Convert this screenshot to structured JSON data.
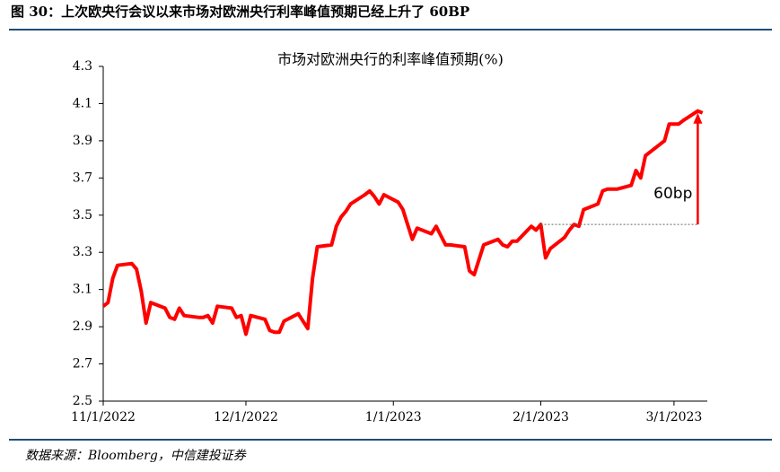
{
  "header": {
    "title": "图 30：上次欧央行会议以来市场对欧洲央行利率峰值预期已经上升了 60BP"
  },
  "chart_data": {
    "type": "line",
    "title": "市场对欧洲央行的利率峰值预期(%)",
    "x": [
      "11/1/2022",
      "11/2/2022",
      "11/3/2022",
      "11/4/2022",
      "11/7/2022",
      "11/8/2022",
      "11/9/2022",
      "11/10/2022",
      "11/11/2022",
      "11/14/2022",
      "11/15/2022",
      "11/16/2022",
      "11/17/2022",
      "11/18/2022",
      "11/21/2022",
      "11/22/2022",
      "11/23/2022",
      "11/24/2022",
      "11/25/2022",
      "11/28/2022",
      "11/29/2022",
      "11/30/2022",
      "12/1/2022",
      "12/2/2022",
      "12/5/2022",
      "12/6/2022",
      "12/7/2022",
      "12/8/2022",
      "12/9/2022",
      "12/12/2022",
      "12/13/2022",
      "12/14/2022",
      "12/15/2022",
      "12/16/2022",
      "12/19/2022",
      "12/20/2022",
      "12/21/2022",
      "12/22/2022",
      "12/23/2022",
      "12/26/2022",
      "12/27/2022",
      "12/28/2022",
      "12/29/2022",
      "12/30/2022",
      "1/2/2023",
      "1/3/2023",
      "1/4/2023",
      "1/5/2023",
      "1/6/2023",
      "1/9/2023",
      "1/10/2023",
      "1/11/2023",
      "1/12/2023",
      "1/13/2023",
      "1/16/2023",
      "1/17/2023",
      "1/18/2023",
      "1/19/2023",
      "1/20/2023",
      "1/23/2023",
      "1/24/2023",
      "1/25/2023",
      "1/26/2023",
      "1/27/2023",
      "1/30/2023",
      "1/31/2023",
      "2/1/2023",
      "2/2/2023",
      "2/3/2023",
      "2/6/2023",
      "2/7/2023",
      "2/8/2023",
      "2/9/2023",
      "2/10/2023",
      "2/13/2023",
      "2/14/2023",
      "2/15/2023",
      "2/16/2023",
      "2/17/2023",
      "2/20/2023",
      "2/21/2023",
      "2/22/2023",
      "2/23/2023",
      "2/24/2023",
      "2/27/2023",
      "2/28/2023",
      "3/1/2023",
      "3/2/2023",
      "3/3/2023",
      "3/6/2023",
      "3/7/2023"
    ],
    "series": [
      {
        "name": "市场对欧洲央行的利率峰值预期",
        "color": "#ff0000",
        "values": [
          3.01,
          3.03,
          3.16,
          3.23,
          3.24,
          3.21,
          3.09,
          2.92,
          3.03,
          3.0,
          2.95,
          2.94,
          3.0,
          2.96,
          2.95,
          2.95,
          2.96,
          2.92,
          3.01,
          3.0,
          2.95,
          2.96,
          2.86,
          2.96,
          2.94,
          2.88,
          2.87,
          2.87,
          2.93,
          2.97,
          2.93,
          2.89,
          3.16,
          3.33,
          3.34,
          3.44,
          3.49,
          3.52,
          3.56,
          3.61,
          3.63,
          3.6,
          3.56,
          3.61,
          3.57,
          3.53,
          3.45,
          3.37,
          3.43,
          3.4,
          3.44,
          3.39,
          3.34,
          3.34,
          3.33,
          3.2,
          3.18,
          3.26,
          3.34,
          3.37,
          3.34,
          3.33,
          3.36,
          3.36,
          3.44,
          3.42,
          3.45,
          3.27,
          3.32,
          3.38,
          3.42,
          3.45,
          3.44,
          3.53,
          3.56,
          3.63,
          3.64,
          3.64,
          3.64,
          3.66,
          3.74,
          3.7,
          3.82,
          3.84,
          3.9,
          3.99,
          3.99,
          3.99,
          4.01,
          4.06,
          4.05
        ]
      }
    ],
    "xlim": [
      "11/1/2022",
      "3/8/2023"
    ],
    "xticks": [
      "11/1/2022",
      "12/1/2022",
      "1/1/2023",
      "2/1/2023",
      "3/1/2023"
    ],
    "ylim": [
      2.5,
      4.3
    ],
    "yticks": [
      2.5,
      2.7,
      2.9,
      3.1,
      3.3,
      3.5,
      3.7,
      3.9,
      4.1,
      4.3
    ],
    "annotation": {
      "text": "60bp",
      "x_start": "2/1/2023",
      "x": "3/6/2023",
      "from": 3.45,
      "to": 4.05
    }
  },
  "footer": {
    "source": "数据来源：Bloomberg，中信建投证券"
  }
}
